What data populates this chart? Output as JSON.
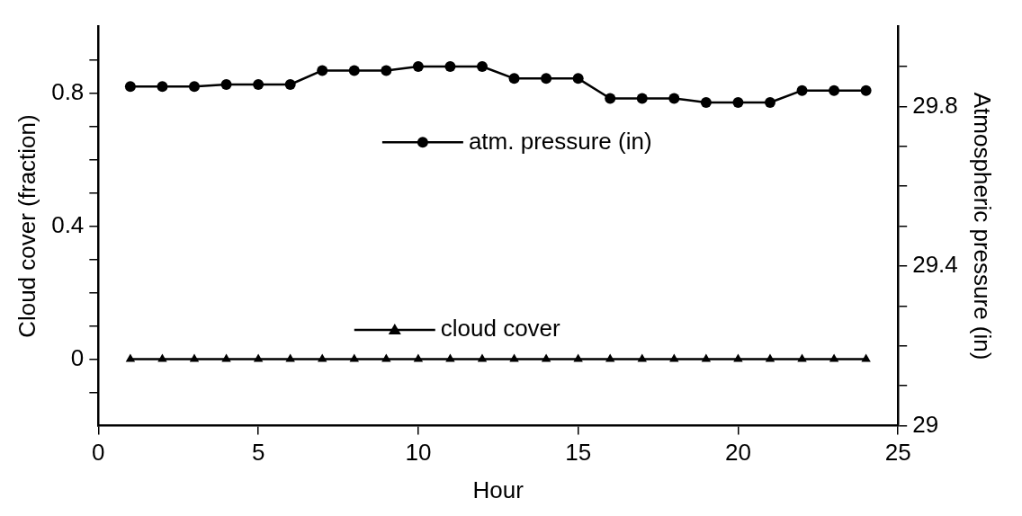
{
  "chart_data": {
    "type": "line",
    "xlabel": "Hour",
    "ylabel": "Cloud cover (fraction)",
    "y2label": "Atmospheric pressure (in)",
    "x": [
      1,
      2,
      3,
      4,
      5,
      6,
      7,
      8,
      9,
      10,
      11,
      12,
      13,
      14,
      15,
      16,
      17,
      18,
      19,
      20,
      21,
      22,
      23,
      24
    ],
    "series": [
      {
        "name": "atm. pressure (in)",
        "color": "#000000",
        "axis": "y2",
        "marker": "circle",
        "values": [
          29.85,
          29.85,
          29.85,
          29.855,
          29.855,
          29.855,
          29.89,
          29.89,
          29.89,
          29.9,
          29.9,
          29.9,
          29.87,
          29.87,
          29.87,
          29.82,
          29.82,
          29.82,
          29.81,
          29.81,
          29.81,
          29.84,
          29.84,
          29.84
        ]
      },
      {
        "name": "cloud cover",
        "color": "#000000",
        "marker": "triangle",
        "values": [
          0,
          0,
          0,
          0,
          0,
          0,
          0,
          0,
          0,
          0,
          0,
          0,
          0,
          0,
          0,
          0,
          0,
          0,
          0,
          0,
          0,
          0,
          0,
          0
        ]
      }
    ],
    "xlim": [
      0,
      25
    ],
    "xticks": [
      0,
      5,
      10,
      15,
      20,
      25
    ],
    "ylim": [
      -0.2,
      1.0
    ],
    "yticks": [
      {
        "value": -0.1,
        "label": null
      },
      0,
      {
        "value": 0.1,
        "label": null
      },
      {
        "value": 0.2,
        "label": null
      },
      {
        "value": 0.3,
        "label": null
      },
      0.4,
      {
        "value": 0.5,
        "label": null
      },
      {
        "value": 0.6,
        "label": null
      },
      {
        "value": 0.7,
        "label": null
      },
      0.8,
      {
        "value": 0.9,
        "label": null
      }
    ],
    "y2lim": [
      29,
      30
    ],
    "y2ticks": [
      29,
      {
        "value": 29.1,
        "label": null
      },
      {
        "value": 29.2,
        "label": null
      },
      {
        "value": 29.3,
        "label": null
      },
      29.4,
      {
        "value": 29.5,
        "label": null
      },
      {
        "value": 29.6,
        "label": null
      },
      {
        "value": 29.7,
        "label": null
      },
      29.8,
      {
        "value": 29.9,
        "label": null
      }
    ],
    "grid": false,
    "legend": "center"
  }
}
